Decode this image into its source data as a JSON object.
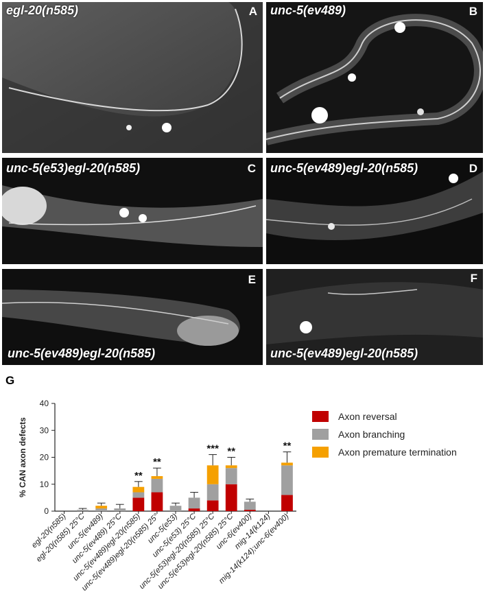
{
  "panels": [
    {
      "id": "A",
      "label": "egl-20(n585)"
    },
    {
      "id": "B",
      "label": "unc-5(ev489)"
    },
    {
      "id": "C",
      "label": "unc-5(e53)egl-20(n585)"
    },
    {
      "id": "D",
      "label": "unc-5(ev489)egl-20(n585)"
    },
    {
      "id": "E",
      "label": "unc-5(ev489)egl-20(n585)"
    },
    {
      "id": "F",
      "label": "unc-5(ev489)egl-20(n585)"
    }
  ],
  "chart_letter": "G",
  "chart_data": {
    "type": "bar",
    "stacked": true,
    "ylabel": "% CAN axon defects",
    "ylim": [
      0,
      40
    ],
    "yticks": [
      0,
      10,
      20,
      30,
      40
    ],
    "categories": [
      "egl-20(n585)",
      "egl-20(n585) 25°C",
      "unc-5(ev489)",
      "unc-5(ev489) 25°C",
      "unc-5(ev489)egl-20(n585)",
      "unc-5(ev489)egl-20(n585) 25°",
      "unc-5(e53)",
      "unc-5(e53) 25°C",
      "unc-5(e53)egl-20(n585) 25°C",
      "unc-5(e53)egl-20(n585) 25°C",
      "unc-6(ev400)",
      "mig-14(k124)",
      "mig-14(k124);unc-6(ev400)"
    ],
    "series": [
      {
        "name": "Axon reversal",
        "color": "#c00000",
        "values": [
          0,
          0,
          0,
          0,
          5,
          7,
          0,
          1,
          4,
          10,
          0.5,
          0,
          6
        ]
      },
      {
        "name": "Axon branching",
        "color": "#a0a0a0",
        "values": [
          0,
          0.5,
          1,
          1,
          2,
          5,
          2,
          4,
          6,
          6,
          3,
          0,
          11
        ]
      },
      {
        "name": "Axon premature termination",
        "color": "#f5a000",
        "values": [
          0,
          0,
          1,
          0,
          2,
          1,
          0,
          0,
          7,
          1,
          0,
          0,
          1
        ]
      }
    ],
    "errors": [
      0,
      1,
      3,
      2.5,
      11,
      16,
      3,
      7,
      21,
      20,
      4.5,
      0,
      22
    ],
    "significance": [
      "",
      "",
      "",
      "",
      "**",
      "**",
      "",
      "",
      "***",
      "**",
      "",
      "",
      "**"
    ],
    "legend_position": "right"
  }
}
